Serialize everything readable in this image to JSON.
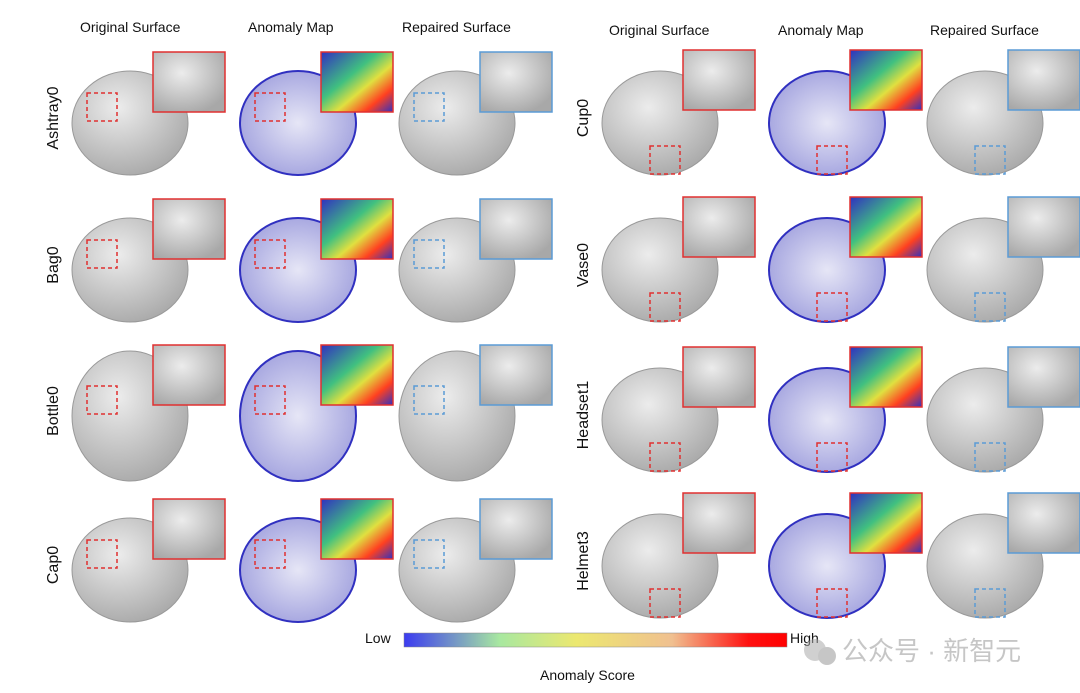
{
  "column_headers": [
    "Original Surface",
    "Anomaly Map",
    "Repaired Surface"
  ],
  "left_panel": {
    "row_labels": [
      "Ashtray0",
      "Bag0",
      "Bottle0",
      "Cap0"
    ]
  },
  "right_panel": {
    "row_labels": [
      "Cup0",
      "Vase0",
      "Headset1",
      "Helmet3"
    ]
  },
  "colorbar": {
    "low_label": "Low",
    "high_label": "High",
    "title": "Anomaly Score",
    "colors": [
      "#3b3bf0",
      "#a8e8a0",
      "#ece870",
      "#f0c090",
      "#ff0000"
    ]
  },
  "highlight_colors": {
    "anomaly_box": "#e03030",
    "repaired_box": "#5b9bd5",
    "surface": "#c8c8c8"
  },
  "watermark": "公众号 · 新智元"
}
